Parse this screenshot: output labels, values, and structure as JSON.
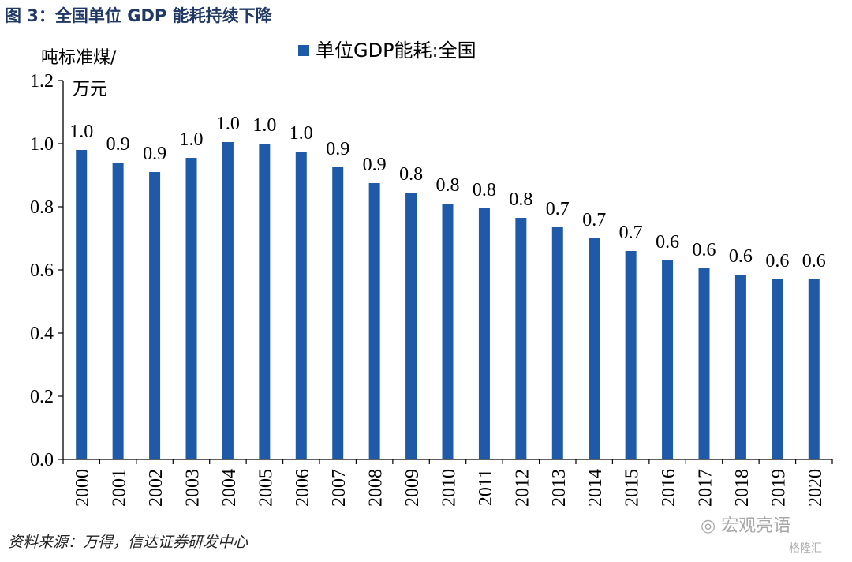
{
  "figure": {
    "title": "图 3：全国单位 GDP 能耗持续下降",
    "source": "资料来源：万得，信达证券研发中心"
  },
  "watermark": {
    "text": "宏观亮语",
    "sub_text": "格隆汇",
    "icon": "wechat-icon"
  },
  "chart_data": {
    "type": "bar",
    "ylabel_line1": "吨标准煤/",
    "ylabel_line2": "万元",
    "legend": "单位GDP能耗:全国",
    "legend_position": "top-center",
    "ylim": [
      0,
      1.2
    ],
    "yticks": [
      "0.0",
      "0.2",
      "0.4",
      "0.6",
      "0.8",
      "1.0",
      "1.2"
    ],
    "grid": false,
    "bar_color": "#1f5aa8",
    "categories": [
      "2000",
      "2001",
      "2002",
      "2003",
      "2004",
      "2005",
      "2006",
      "2007",
      "2008",
      "2009",
      "2010",
      "2011",
      "2012",
      "2013",
      "2014",
      "2015",
      "2016",
      "2017",
      "2018",
      "2019",
      "2020"
    ],
    "values": [
      0.98,
      0.94,
      0.91,
      0.955,
      1.005,
      1.0,
      0.975,
      0.925,
      0.875,
      0.845,
      0.81,
      0.795,
      0.765,
      0.735,
      0.7,
      0.66,
      0.63,
      0.605,
      0.585,
      0.57,
      0.57
    ],
    "data_labels": [
      "1.0",
      "0.9",
      "0.9",
      "1.0",
      "1.0",
      "1.0",
      "1.0",
      "0.9",
      "0.9",
      "0.8",
      "0.8",
      "0.8",
      "0.8",
      "0.7",
      "0.7",
      "0.7",
      "0.6",
      "0.6",
      "0.6",
      "0.6",
      "0.6"
    ]
  }
}
